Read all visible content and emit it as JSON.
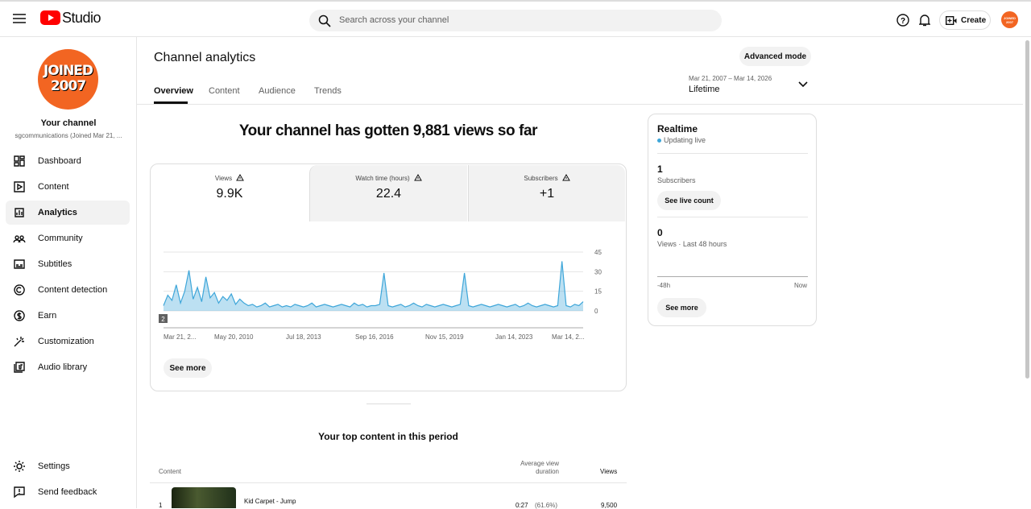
{
  "header": {
    "logo": "Studio",
    "search_placeholder": "Search across your channel",
    "create": "Create",
    "avatar": [
      "JOINED",
      "2007"
    ]
  },
  "sidebar": {
    "avatar": [
      "JOINED",
      "2007"
    ],
    "channel_title": "Your channel",
    "channel_name": "sgcommunications (Joined Mar 21, ...",
    "nav": [
      "Dashboard",
      "Content",
      "Analytics",
      "Community",
      "Subtitles",
      "Content detection",
      "Earn",
      "Customization",
      "Audio library"
    ],
    "bottom": [
      "Settings",
      "Send feedback"
    ]
  },
  "page": {
    "title": "Channel analytics",
    "advanced": "Advanced mode",
    "tabs": [
      "Overview",
      "Content",
      "Audience",
      "Trends"
    ],
    "date_range": "Mar 21, 2007 – Mar 14, 2026",
    "period": "Lifetime",
    "headline": "Your channel has gotten 9,881 views so far"
  },
  "metrics": [
    {
      "label": "Views",
      "value": "9.9K"
    },
    {
      "label": "Watch time (hours)",
      "value": "22.4"
    },
    {
      "label": "Subscribers",
      "value": "+1"
    }
  ],
  "chart": {
    "type": "line",
    "color": "#3ea6d9",
    "ylim": [
      0,
      45
    ],
    "yticks": [
      0,
      15,
      30,
      45
    ],
    "badge": "2",
    "xlabels": [
      "Mar 21, 2...",
      "May 20, 2010",
      "Jul 18, 2013",
      "Sep 16, 2016",
      "Nov 15, 2019",
      "Jan 14, 2023",
      "Mar 14, 2..."
    ],
    "values": [
      4,
      12,
      8,
      20,
      6,
      15,
      31,
      9,
      18,
      7,
      26,
      10,
      14,
      6,
      11,
      8,
      13,
      5,
      9,
      6,
      4,
      5,
      3,
      4,
      6,
      3,
      4,
      5,
      3,
      4,
      3,
      5,
      4,
      3,
      4,
      6,
      3,
      4,
      5,
      4,
      3,
      4,
      5,
      4,
      3,
      6,
      4,
      5,
      3,
      4,
      4,
      5,
      29,
      4,
      3,
      4,
      5,
      3,
      4,
      6,
      4,
      3,
      5,
      4,
      3,
      4,
      5,
      4,
      3,
      4,
      5,
      29,
      4,
      3,
      4,
      5,
      4,
      3,
      4,
      5,
      4,
      3,
      4,
      5,
      3,
      4,
      6,
      4,
      3,
      4,
      5,
      4,
      3,
      4,
      38,
      4,
      3,
      5,
      4,
      7
    ]
  },
  "see_more": "See more",
  "realtime": {
    "title": "Realtime",
    "status": "Updating live",
    "subscribers": "1",
    "subscribers_label": "Subscribers",
    "live_button": "See live count",
    "views": "0",
    "views_label": "Views · Last 48 hours",
    "axis": [
      "-48h",
      "Now"
    ],
    "see_more": "See more"
  },
  "top_content": {
    "title": "Your top content in this period",
    "columns": [
      "Content",
      "Average view duration",
      "Views"
    ],
    "rows": [
      {
        "rank": "1",
        "title": "Kid Carpet - Jump",
        "duration": "0:27",
        "percent": "(61.6%)",
        "views": "9,500"
      }
    ]
  }
}
